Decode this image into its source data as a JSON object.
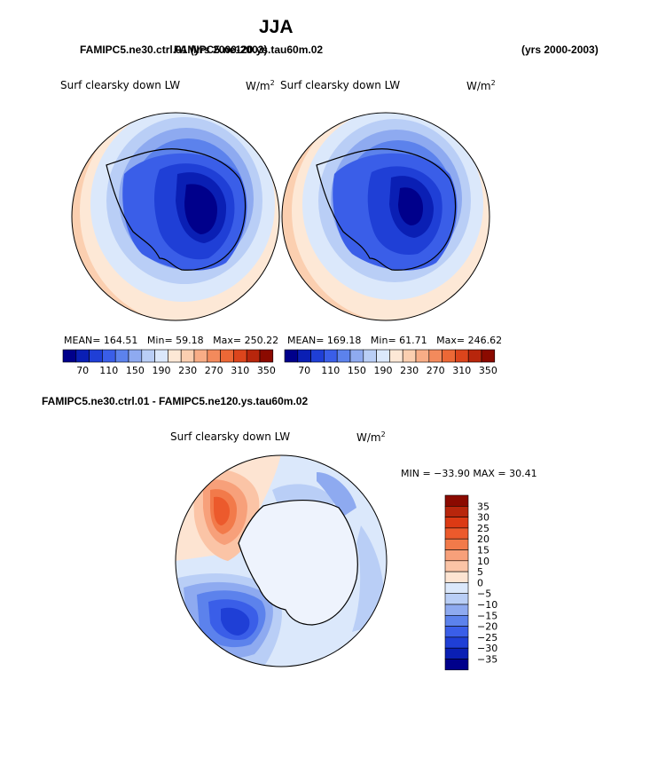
{
  "header": {
    "title": "JJA",
    "left_case_overlap": "FAMIPC5.ne30.ctrl.01 (yrs 2000-2003)",
    "left_case_overlap_b": "FAMIPC5.ne120.ys.tau60m.02",
    "right_years": "(yrs 2000-2003)"
  },
  "panel_left": {
    "field_label": "Surf clearsky down LW",
    "units": "W/m",
    "units_exp": "2",
    "mean_label": "MEAN=",
    "mean": "164.51",
    "min_label": "Min=",
    "min": "59.18",
    "max_label": "Max=",
    "max": "250.22"
  },
  "panel_right": {
    "field_label": "Surf clearsky down LW",
    "units": "W/m",
    "units_exp": "2",
    "mean_label": "MEAN=",
    "mean": "169.18",
    "min_label": "Min=",
    "min": "61.71",
    "max_label": "Max=",
    "max": "246.62"
  },
  "colorbar_top": {
    "colors": [
      "#00008b",
      "#0a1fb4",
      "#1f3fd6",
      "#3a5ee8",
      "#5c82ec",
      "#8eaaf0",
      "#b9cef6",
      "#dbe8fb",
      "#fde8d6",
      "#fbcfb0",
      "#f8ad86",
      "#f38a5c",
      "#ec6836",
      "#dc451c",
      "#b8260c",
      "#8b0a00"
    ],
    "ticks": [
      "70",
      "110",
      "150",
      "190",
      "230",
      "270",
      "310",
      "350"
    ]
  },
  "diff_panel": {
    "title": "FAMIPC5.ne30.ctrl.01 - FAMIPC5.ne120.ys.tau60m.02",
    "field_label": "Surf clearsky down LW",
    "units": "W/m",
    "units_exp": "2",
    "minmax": "MIN = −33.90 MAX =  30.41"
  },
  "colorbar_diff": {
    "colors": [
      "#8b0a00",
      "#b8260c",
      "#dc3a14",
      "#ec5a2c",
      "#f27a4a",
      "#f7a07a",
      "#fbc4a6",
      "#fde4d2",
      "#dbe8fb",
      "#b9cef6",
      "#8eaaf0",
      "#5c82ec",
      "#3a5ee8",
      "#1f3fd6",
      "#0a1fb4",
      "#00008b"
    ],
    "ticks": [
      "35",
      "30",
      "25",
      "20",
      "15",
      "10",
      "5",
      "0",
      "−5",
      "−10",
      "−15",
      "−20",
      "−25",
      "−30",
      "−35"
    ]
  }
}
